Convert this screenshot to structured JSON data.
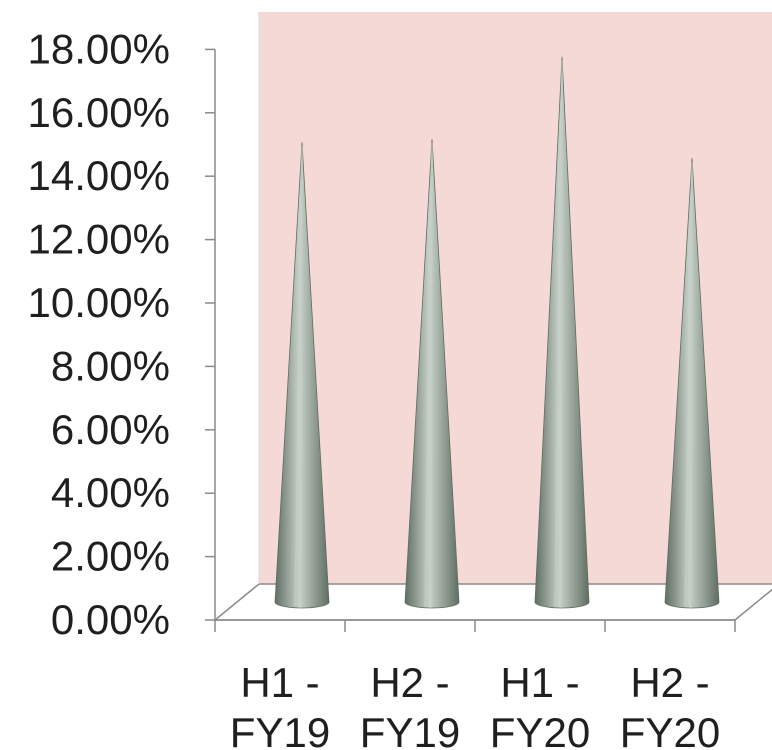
{
  "chart_data": {
    "type": "bar",
    "bar_shape": "cone",
    "three_d": true,
    "categories": [
      "H1 - FY19",
      "H2 - FY19",
      "H1 - FY20",
      "H2 - FY20"
    ],
    "category_lines": [
      [
        "H1 -",
        "FY19"
      ],
      [
        "H2 -",
        "FY19"
      ],
      [
        "H1 -",
        "FY20"
      ],
      [
        "H2 -",
        "FY20"
      ]
    ],
    "values": [
      14.5,
      14.6,
      17.2,
      14.0
    ],
    "value_unit": "%",
    "y_ticks": [
      "0.00%",
      "2.00%",
      "4.00%",
      "6.00%",
      "8.00%",
      "10.00%",
      "12.00%",
      "14.00%",
      "16.00%",
      "18.00%"
    ],
    "ylim": [
      0,
      18
    ],
    "title": "",
    "xlabel": "",
    "ylabel": "",
    "legend": "none",
    "grid": false,
    "colors": {
      "plot_background": "#f4d9d7",
      "cone": "#8f9e92",
      "cone_highlight": "#c7d1c9",
      "cone_shadow": "#5f6d62",
      "axis": "#8a8a8a"
    }
  }
}
